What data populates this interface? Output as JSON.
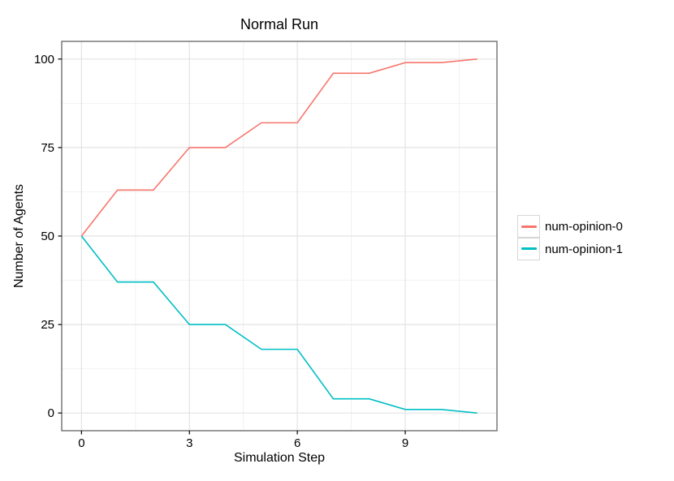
{
  "chart_data": {
    "type": "line",
    "title": "Normal Run",
    "xlabel": "Simulation Step",
    "ylabel": "Number of Agents",
    "x": [
      0,
      1,
      2,
      3,
      4,
      5,
      6,
      7,
      8,
      9,
      10,
      11
    ],
    "series": [
      {
        "name": "num-opinion-0",
        "color": "#F8766D",
        "values": [
          50,
          63,
          63,
          75,
          75,
          82,
          82,
          96,
          96,
          99,
          99,
          100
        ]
      },
      {
        "name": "num-opinion-1",
        "color": "#00BFC4",
        "values": [
          50,
          37,
          37,
          25,
          25,
          18,
          18,
          4,
          4,
          1,
          1,
          0
        ]
      }
    ],
    "xlim": [
      -0.55,
      11.55
    ],
    "ylim": [
      -5,
      105
    ],
    "x_ticks": [
      0,
      3,
      6,
      9
    ],
    "y_ticks": [
      0,
      25,
      50,
      75,
      100
    ],
    "x_minor_ticks": [
      1.5,
      4.5,
      7.5,
      10.5
    ],
    "y_minor_ticks": [
      12.5,
      37.5,
      62.5,
      87.5
    ],
    "grid": true,
    "legend_position": "right",
    "style": {
      "background": "#FFFFFF",
      "panel_background": "#FFFFFF",
      "grid_major_color": "#E3E3E3",
      "grid_minor_color": "#F2F2F2",
      "panel_border_color": "#6F6F6F",
      "tick_color": "#000000",
      "text_color": "#000000"
    }
  }
}
